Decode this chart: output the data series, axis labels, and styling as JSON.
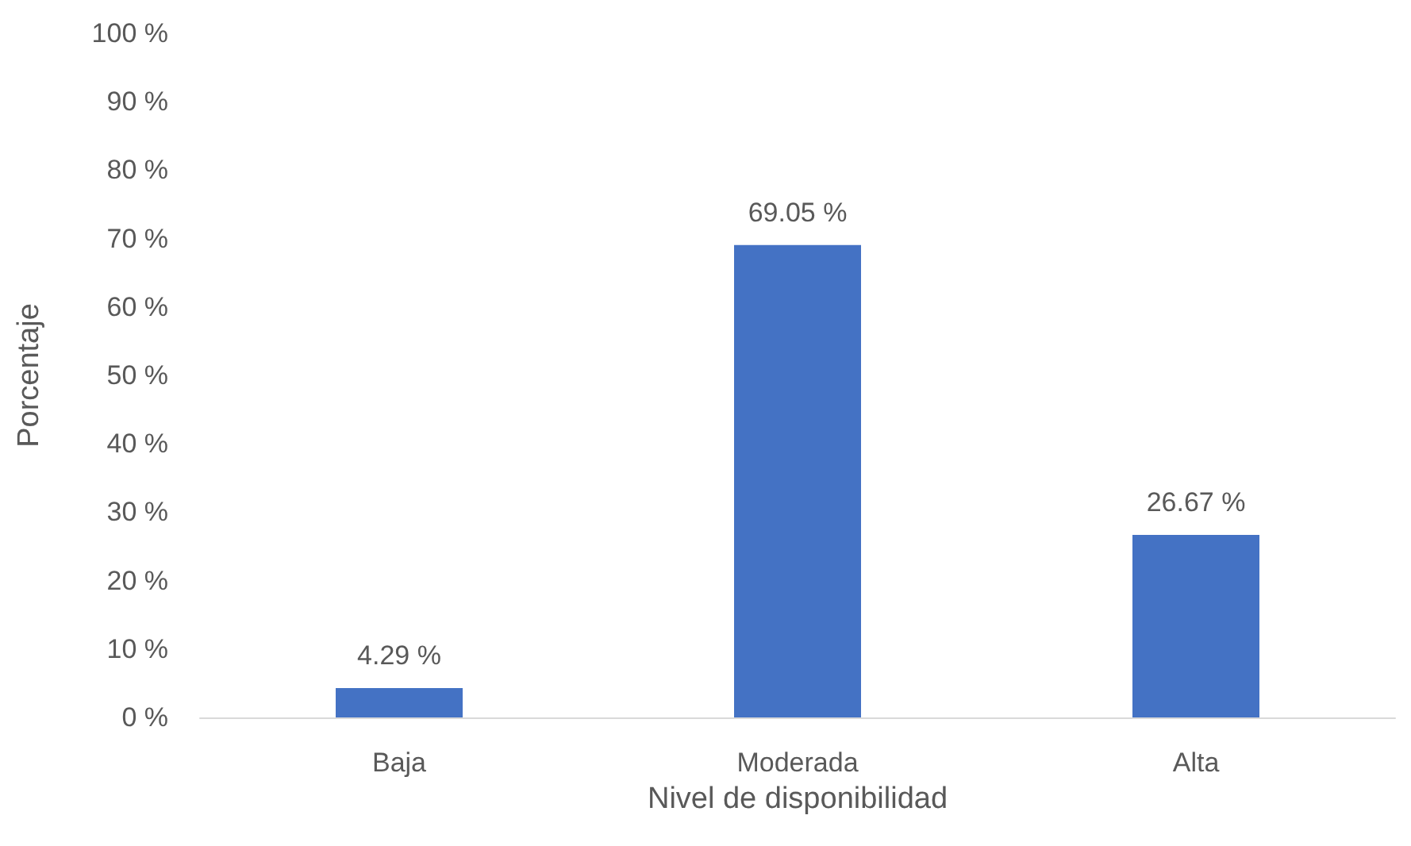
{
  "chart_data": {
    "type": "bar",
    "xlabel": "Nivel de disponibilidad",
    "ylabel": "Porcentaje",
    "categories": [
      "Baja",
      "Moderada",
      "Alta"
    ],
    "values": [
      4.29,
      69.05,
      26.67
    ],
    "value_labels": [
      "4.29 %",
      "69.05 %",
      "26.67 %"
    ],
    "color": "#4472c4",
    "ylim": [
      0,
      100
    ],
    "yticks": [
      {
        "value": 0,
        "label": "0 %"
      },
      {
        "value": 10,
        "label": "10 %"
      },
      {
        "value": 20,
        "label": "20 %"
      },
      {
        "value": 30,
        "label": "30 %"
      },
      {
        "value": 40,
        "label": "40 %"
      },
      {
        "value": 50,
        "label": "50 %"
      },
      {
        "value": 60,
        "label": "60 %"
      },
      {
        "value": 70,
        "label": "70 %"
      },
      {
        "value": 80,
        "label": "80 %"
      },
      {
        "value": 90,
        "label": "90 %"
      },
      {
        "value": 100,
        "label": "100 %"
      }
    ]
  }
}
